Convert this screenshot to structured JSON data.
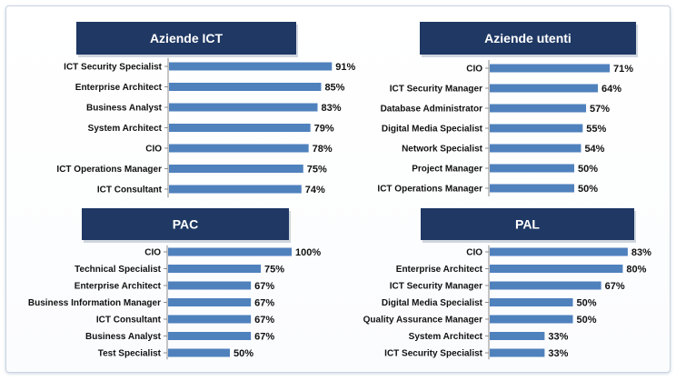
{
  "colors": {
    "bar": "#4f81bd",
    "title_bg": "#1f3864",
    "title_text": "#ffffff",
    "axis": "#8c8c8c",
    "text": "#111111"
  },
  "chart_data": [
    {
      "type": "bar",
      "orientation": "horizontal",
      "title": "Aziende ICT",
      "categories": [
        "ICT Security Specialist",
        "Enterprise Architect",
        "Business Analyst",
        "System Architect",
        "CIO",
        "ICT Operations Manager",
        "ICT Consultant"
      ],
      "values": [
        91,
        85,
        83,
        79,
        78,
        75,
        74
      ],
      "value_labels": [
        "91%",
        "85%",
        "83%",
        "79%",
        "78%",
        "75%",
        "74%"
      ],
      "xlim": [
        0,
        100
      ],
      "grid": false,
      "legend": "none"
    },
    {
      "type": "bar",
      "orientation": "horizontal",
      "title": "Aziende utenti",
      "categories": [
        "CIO",
        "ICT Security Manager",
        "Database Administrator",
        "Digital Media Specialist",
        "Network Specialist",
        "Project Manager",
        "ICT Operations Manager"
      ],
      "values": [
        71,
        64,
        57,
        55,
        54,
        50,
        50
      ],
      "value_labels": [
        "71%",
        "64%",
        "57%",
        "55%",
        "54%",
        "50%",
        "50%"
      ],
      "xlim": [
        0,
        100
      ],
      "grid": false,
      "legend": "none"
    },
    {
      "type": "bar",
      "orientation": "horizontal",
      "title": "PAC",
      "categories": [
        "CIO",
        "Technical Specialist",
        "Enterprise Architect",
        "Business Information Manager",
        "ICT Consultant",
        "Business Analyst",
        "Test Specialist"
      ],
      "values": [
        100,
        75,
        67,
        67,
        67,
        67,
        50
      ],
      "value_labels": [
        "100%",
        "75%",
        "67%",
        "67%",
        "67%",
        "67%",
        "50%"
      ],
      "xlim": [
        0,
        100
      ],
      "grid": false,
      "legend": "none"
    },
    {
      "type": "bar",
      "orientation": "horizontal",
      "title": "PAL",
      "categories": [
        "CIO",
        "Enterprise Architect",
        "ICT Security Manager",
        "Digital Media Specialist",
        "Quality Assurance Manager",
        "System Architect",
        "ICT Security Specialist"
      ],
      "values": [
        83,
        80,
        67,
        50,
        50,
        33,
        33
      ],
      "value_labels": [
        "83%",
        "80%",
        "67%",
        "50%",
        "50%",
        "33%",
        "33%"
      ],
      "xlim": [
        0,
        100
      ],
      "grid": false,
      "legend": "none"
    }
  ]
}
